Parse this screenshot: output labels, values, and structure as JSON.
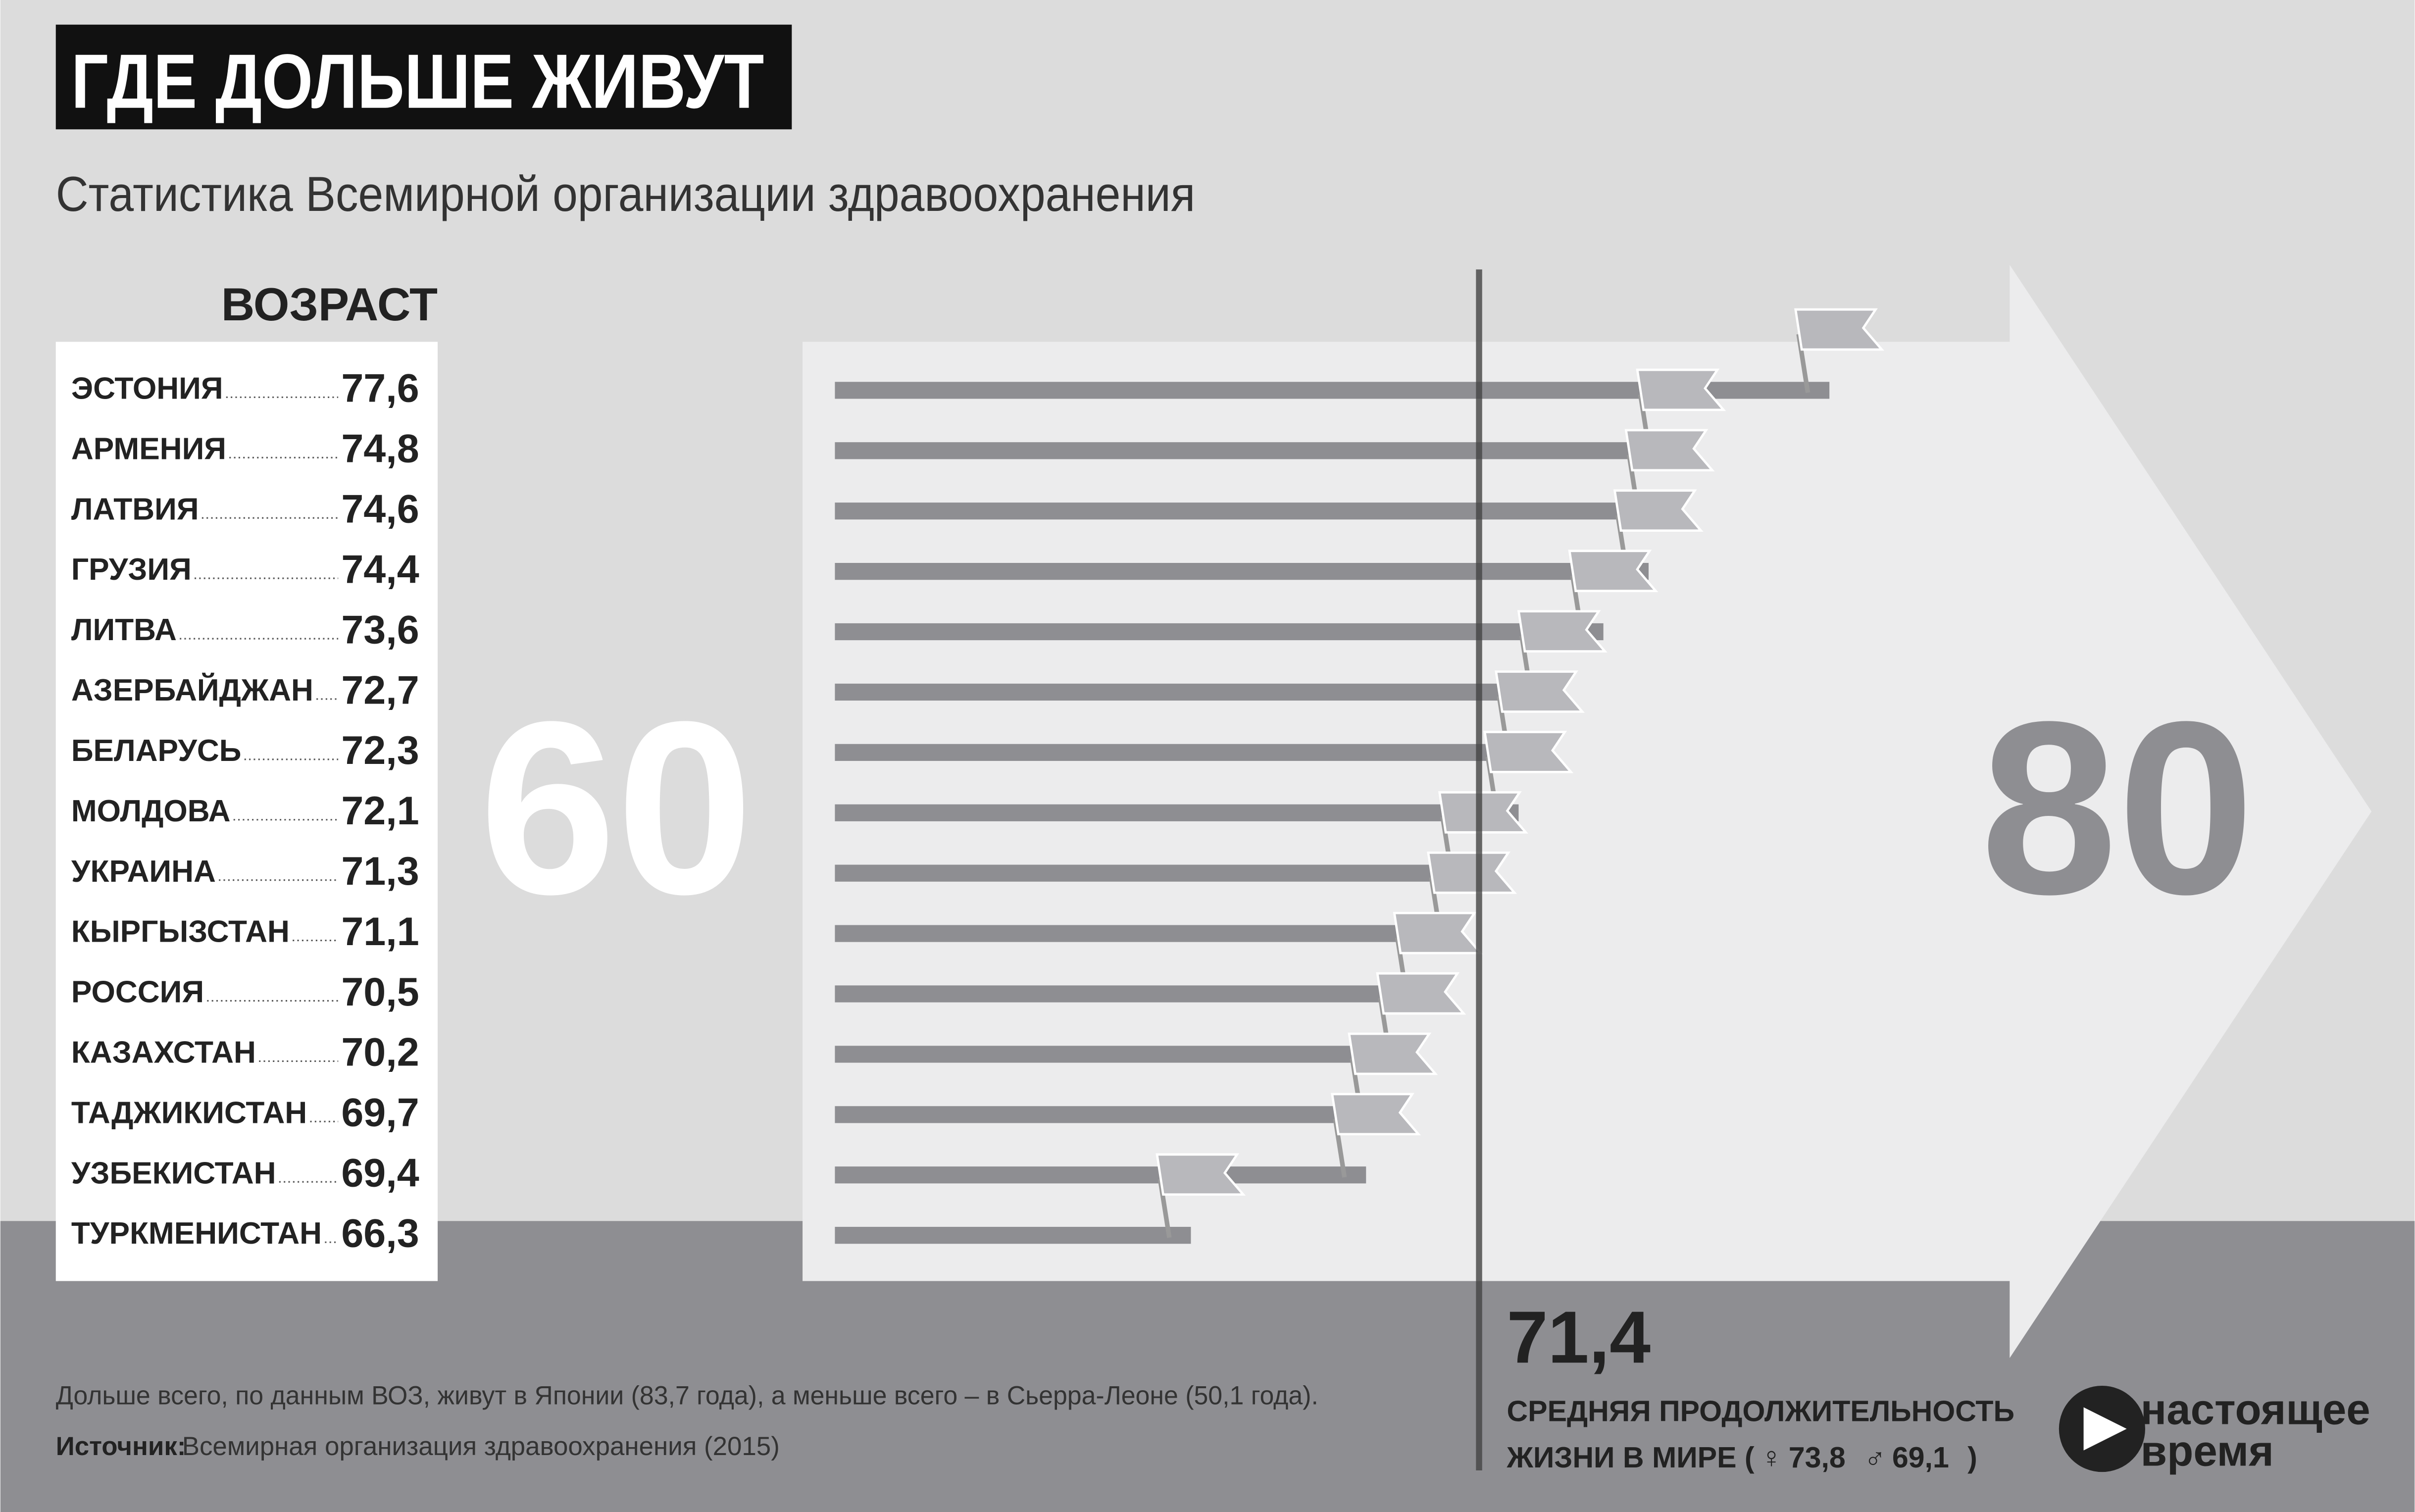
{
  "chart_data": {
    "type": "bar",
    "orientation": "horizontal",
    "title": "ГДЕ ДОЛЬШЕ ЖИВУТ",
    "subtitle": "Статистика Всемирной организации здравоохранения",
    "value_header": "ВОЗРАСТ",
    "categories": [
      "ЭСТОНИЯ",
      "АРМЕНИЯ",
      "ЛАТВИЯ",
      "ГРУЗИЯ",
      "ЛИТВА",
      "АЗЕРБАЙДЖАН",
      "БЕЛАРУСЬ",
      "МОЛДОВА",
      "УКРАИНА",
      "КЫРГЫЗСТАН",
      "РОССИЯ",
      "КАЗАХСТАН",
      "ТАДЖИКИСТАН",
      "УЗБЕКИСТАН",
      "ТУРКМЕНИСТАН"
    ],
    "values": [
      77.6,
      74.8,
      74.6,
      74.4,
      73.6,
      72.7,
      72.3,
      72.1,
      71.3,
      71.1,
      70.5,
      70.2,
      69.7,
      69.4,
      66.3
    ],
    "value_labels": [
      "77,6",
      "74,8",
      "74,6",
      "74,4",
      "73,6",
      "72,7",
      "72,3",
      "72,1",
      "71,3",
      "71,1",
      "70,5",
      "70,2",
      "69,7",
      "69,4",
      "66,3"
    ],
    "color": "#8e8e92",
    "xlim": [
      60,
      80
    ],
    "xticks": [
      60,
      80
    ],
    "reference": {
      "value": 71.4,
      "label": "71,4",
      "caption_line1": "СРЕДНЯЯ ПРОДОЛЖИТЕЛЬНОСТЬ",
      "caption_line2": "ЖИЗНИ В МИРЕ (",
      "female": {
        "symbol": "♀",
        "value": 73.8,
        "label": "73,8"
      },
      "male": {
        "symbol": "♂",
        "value": 69.1,
        "label": "69,1"
      },
      "caption_end": ")"
    }
  },
  "note": "Дольше всего, по данным ВОЗ, живут в Японии (83,7 года), а меньше всего – в Сьерра-Леоне (50,1 года).",
  "source": {
    "label": "Источник:",
    "text": "Всемирная организация здравоохранения (2015)"
  },
  "logo": [
    "настоящее",
    "время"
  ]
}
